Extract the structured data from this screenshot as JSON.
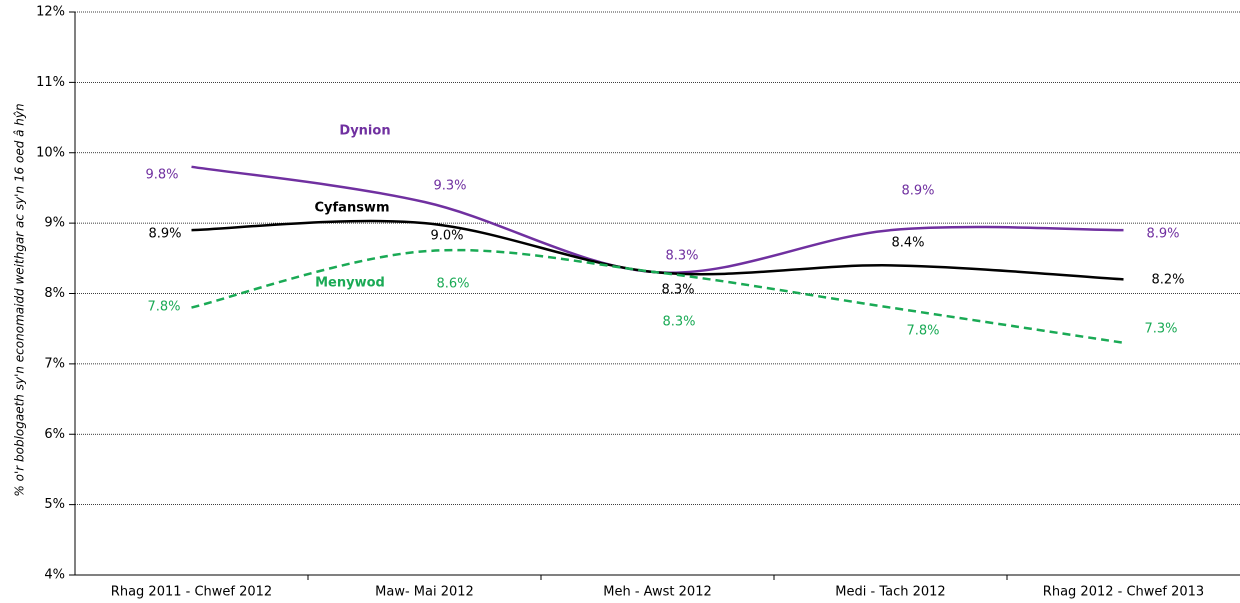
{
  "chart_data": {
    "type": "line",
    "y_label": "% o'r boblogaeth sy'n economaidd weithgar ac sy'n 16 oed â hŷn",
    "categories": [
      "Rhag 2011 - Chwef 2012",
      "Maw- Mai 2012",
      "Meh - Awst 2012",
      "Medi - Tach 2012",
      "Rhag 2012 - Chwef 2013"
    ],
    "series": [
      {
        "name": "Dynion",
        "color": "#7030a0",
        "dashed": false,
        "values": [
          9.8,
          9.3,
          8.3,
          8.9,
          8.9
        ],
        "value_labels": [
          "9.8%",
          "9.3%",
          "8.3%",
          "8.9%",
          "8.9%"
        ]
      },
      {
        "name": "Cyfanswm",
        "color": "#000000",
        "dashed": false,
        "values": [
          8.9,
          9.0,
          8.3,
          8.4,
          8.2
        ],
        "value_labels": [
          "8.9%",
          "9.0%",
          "8.3%",
          "8.4%",
          "8.2%"
        ]
      },
      {
        "name": "Menywod",
        "color": "#1aaa55",
        "dashed": true,
        "values": [
          7.8,
          8.6,
          8.3,
          7.8,
          7.3
        ],
        "value_labels": [
          "7.8%",
          "8.6%",
          "8.3%",
          "7.8%",
          "7.3%"
        ]
      }
    ],
    "ylim": [
      4,
      12
    ],
    "yticks": [
      {
        "value": 4,
        "label": "4%"
      },
      {
        "value": 5,
        "label": "5%"
      },
      {
        "value": 6,
        "label": "6%"
      },
      {
        "value": 7,
        "label": "7%"
      },
      {
        "value": 8,
        "label": "8%"
      },
      {
        "value": 9,
        "label": "9%"
      },
      {
        "value": 10,
        "label": "10%"
      },
      {
        "value": 11,
        "label": "11%"
      },
      {
        "value": 12,
        "label": "12%"
      }
    ],
    "grid": true
  }
}
